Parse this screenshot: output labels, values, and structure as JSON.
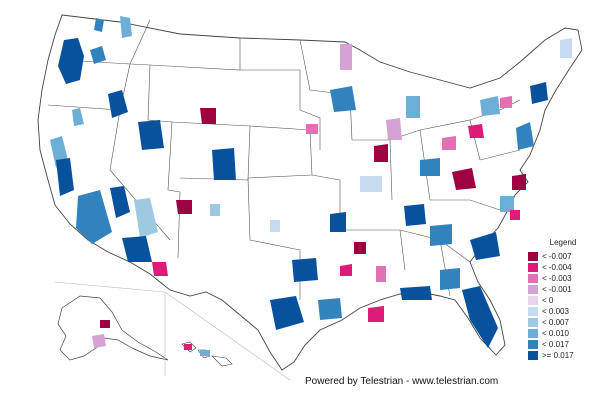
{
  "legend": {
    "title": "Legend",
    "items": [
      {
        "label": "< -0.007",
        "color": "#9e0041"
      },
      {
        "label": "< -0.004",
        "color": "#dd1c77"
      },
      {
        "label": "< -0.003",
        "color": "#e36fb4"
      },
      {
        "label": "< -0.001",
        "color": "#d4a3d3"
      },
      {
        "label": "< 0",
        "color": "#e7d3ea"
      },
      {
        "label": "< 0.003",
        "color": "#c6dbef"
      },
      {
        "label": "< 0.007",
        "color": "#9ecae1"
      },
      {
        "label": "< 0.010",
        "color": "#6baed6"
      },
      {
        "label": "< 0.017",
        "color": "#3182bd"
      },
      {
        "label": ">= 0.017",
        "color": "#08519c"
      }
    ]
  },
  "footer": {
    "text": "Powered by Telestrian - www.telestrian.com"
  },
  "map_data": {
    "subject": "metro areas of the United States",
    "highlights": [
      {
        "class": 0,
        "region": "Central Wyoming"
      },
      {
        "class": 0,
        "region": "Southern Colorado"
      },
      {
        "class": 0,
        "region": "Southern Illinois"
      },
      {
        "class": 0,
        "region": "West Virginia"
      },
      {
        "class": 1,
        "region": "Southern Arizona"
      },
      {
        "class": 1,
        "region": "Gulf Coast Louisiana"
      },
      {
        "class": 1,
        "region": "Hawaii"
      },
      {
        "class": 9,
        "region": "Florida"
      },
      {
        "class": 9,
        "region": "Southern California"
      },
      {
        "class": 9,
        "region": "Washington"
      }
    ]
  }
}
